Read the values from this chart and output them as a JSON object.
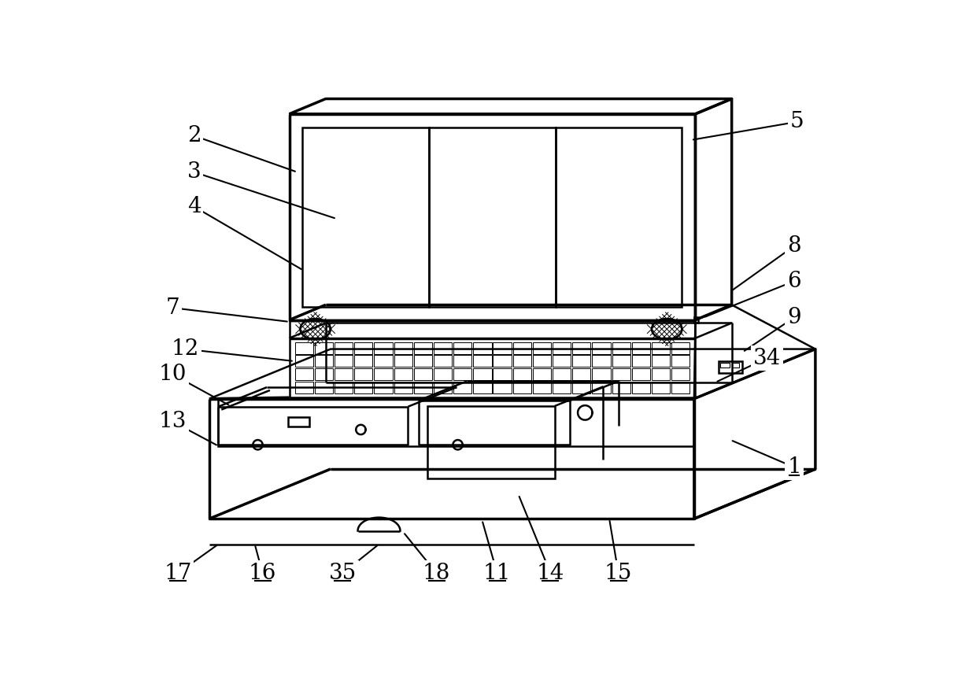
{
  "bg_color": "#ffffff",
  "line_color": "#000000",
  "lw": 1.8,
  "tlw": 2.5,
  "figure_width": 12.4,
  "figure_height": 8.73
}
